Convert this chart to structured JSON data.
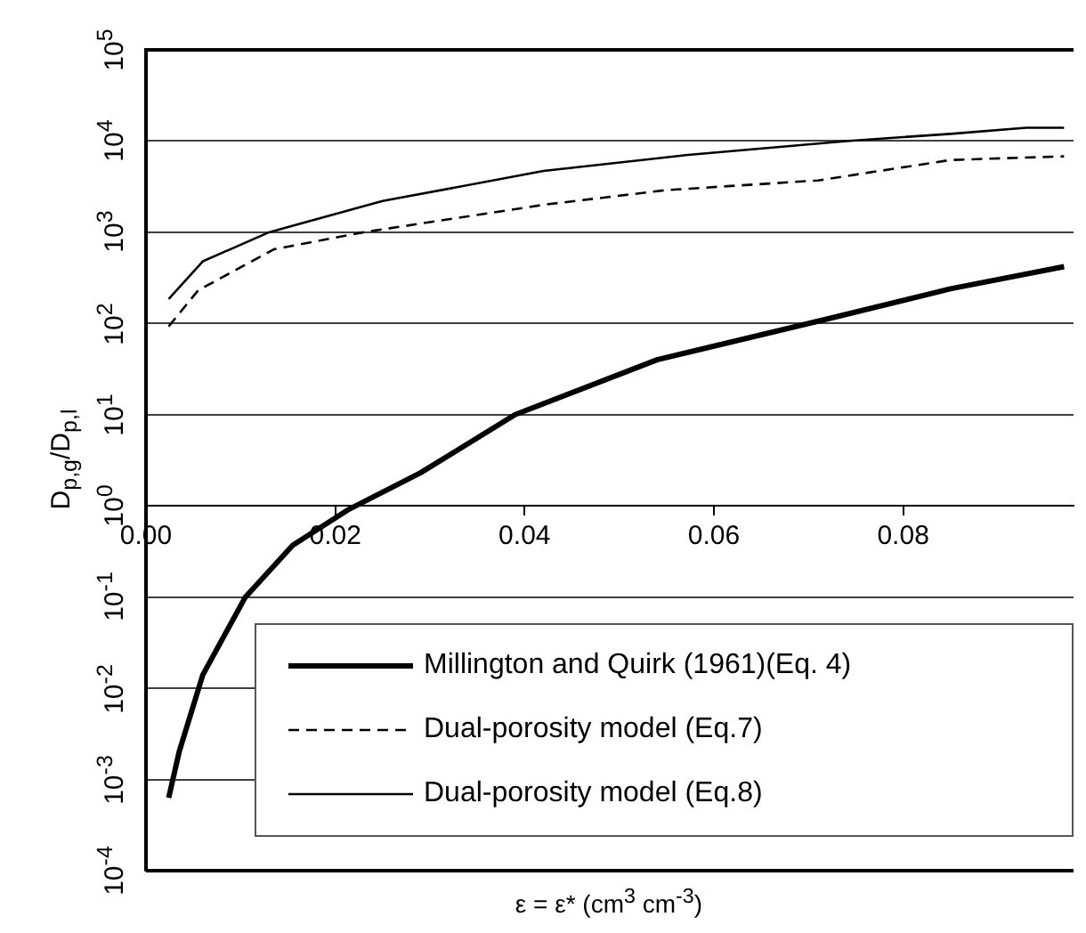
{
  "chart_data": {
    "type": "line",
    "xlabel": "ε = ε* (cm$^{3}$ cm$^{-3}$)",
    "ylabel": "D$_{p,g}$/D$_{p,l}$",
    "log": "y",
    "grid": "y",
    "legend": "bottom right",
    "marker": "none",
    "xlim": [
      0,
      0.098
    ],
    "ylim": [
      0.0001,
      100000
    ],
    "xticks": [
      {
        "value": 0,
        "label": "0.00"
      },
      {
        "value": 0.02,
        "label": "0.02"
      },
      {
        "value": 0.04,
        "label": "0.04"
      },
      {
        "value": 0.06,
        "label": "0.06"
      },
      {
        "value": 0.08,
        "label": "0.08"
      }
    ],
    "yticks": [
      {
        "value": 0.0001,
        "label": "10$^{-4}$"
      },
      {
        "value": 0.001,
        "label": "10$^{-3}$"
      },
      {
        "value": 0.01,
        "label": "10$^{-2}$"
      },
      {
        "value": 0.1,
        "label": "10$^{-1}$"
      },
      {
        "value": 1,
        "label": "10$^{0}$"
      },
      {
        "value": 10,
        "label": "10$^{1}$"
      },
      {
        "value": 100,
        "label": "10$^{2}$"
      },
      {
        "value": 1000,
        "label": "10$^{3}$"
      },
      {
        "value": 10000,
        "label": "10$^{4}$"
      },
      {
        "value": 100000,
        "label": "10$^{5}$"
      }
    ],
    "series": [
      {
        "name": "Millington and Quirk (1961)(Eq. 4)",
        "color": "#000000",
        "line_style": "solid",
        "x": [
          0.0024,
          0.0035,
          0.006,
          0.0105,
          0.0155,
          0.0213,
          0.029,
          0.039,
          0.054,
          0.072,
          0.085,
          0.097
        ],
        "values": [
          0.00063,
          0.002,
          0.014,
          0.1,
          0.37,
          0.9,
          2.3,
          10,
          40,
          112,
          240,
          420
        ]
      },
      {
        "name": "Dual-porosity model (Eq.7)",
        "color": "#000000",
        "line_style": "dashed",
        "x": [
          0.0024,
          0.0055,
          0.0135,
          0.023,
          0.042,
          0.055,
          0.071,
          0.085,
          0.097
        ],
        "values": [
          93,
          230,
          650,
          1000,
          2000,
          2900,
          3700,
          6200,
          6800
        ]
      },
      {
        "name": "Dual-porosity model (Eq.8)",
        "color": "#000000",
        "line_style": "solid",
        "x": [
          0.0024,
          0.006,
          0.013,
          0.025,
          0.042,
          0.057,
          0.074,
          0.085,
          0.093,
          0.097
        ],
        "values": [
          185,
          480,
          1000,
          2200,
          4700,
          7000,
          10000,
          12000,
          14000,
          14000
        ]
      }
    ]
  }
}
